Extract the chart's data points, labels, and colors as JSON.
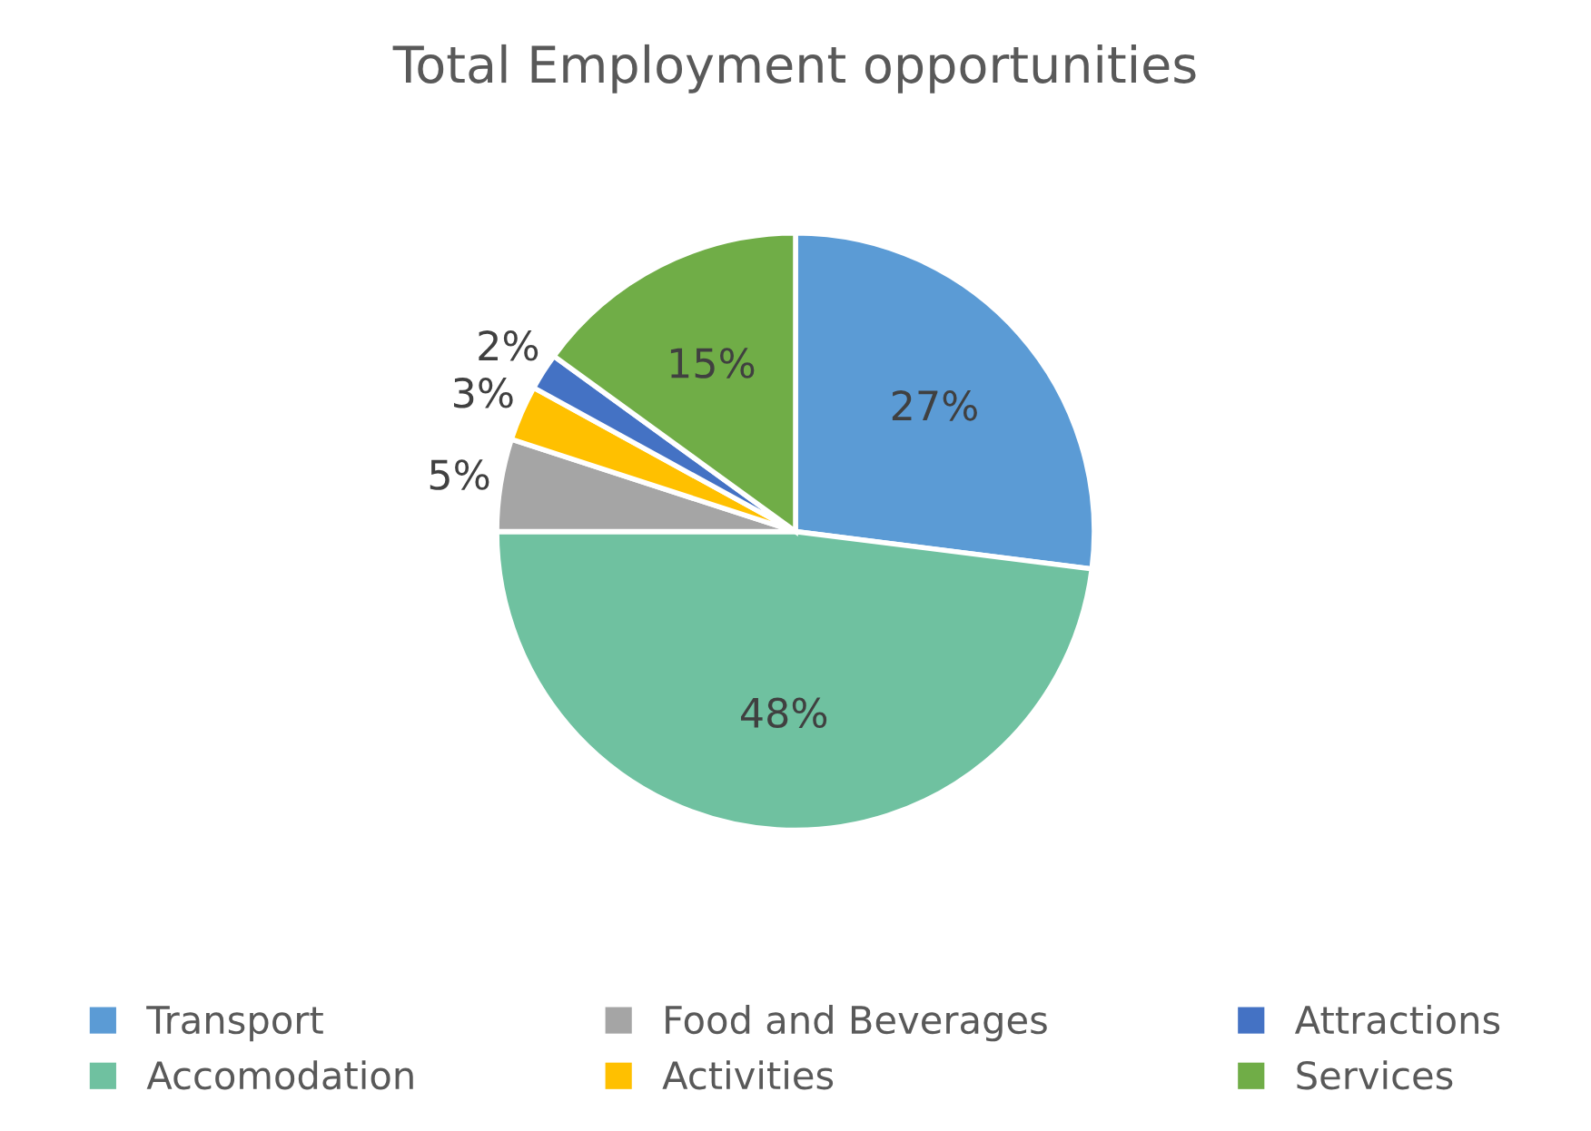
{
  "chart_data": {
    "type": "pie",
    "title": "Total Employment opportunities",
    "categories": [
      "Transport",
      "Accomodation",
      "Food and Beverages",
      "Activities",
      "Attractions",
      "Services"
    ],
    "values": [
      27,
      48,
      5,
      3,
      2,
      15
    ],
    "colors": [
      "#5b9bd5",
      "#6fc1a0",
      "#a5a5a5",
      "#ffc000",
      "#4472c4",
      "#70ad47"
    ],
    "value_labels": [
      "27%",
      "48%",
      "5%",
      "3%",
      "2%",
      "15%"
    ],
    "legend": "bottom"
  }
}
